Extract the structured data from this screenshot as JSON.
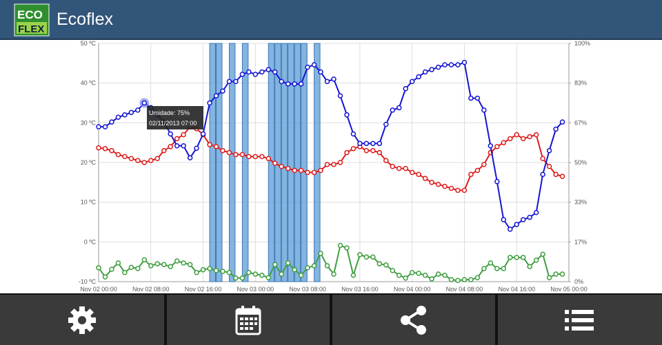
{
  "header": {
    "title": "Ecoflex",
    "logo_top": "ECO",
    "logo_bottom": "FLEX"
  },
  "chart_data": {
    "type": "line",
    "x": [
      "Nov 02 00:00",
      "Nov 02 01:00",
      "Nov 02 02:00",
      "Nov 02 03:00",
      "Nov 02 04:00",
      "Nov 02 05:00",
      "Nov 02 06:00",
      "Nov 02 07:00",
      "Nov 02 08:00",
      "Nov 02 09:00",
      "Nov 02 10:00",
      "Nov 02 11:00",
      "Nov 02 12:00",
      "Nov 02 13:00",
      "Nov 02 14:00",
      "Nov 02 15:00",
      "Nov 02 16:00",
      "Nov 02 17:00",
      "Nov 02 18:00",
      "Nov 02 19:00",
      "Nov 02 20:00",
      "Nov 02 21:00",
      "Nov 02 22:00",
      "Nov 02 23:00",
      "Nov 03 00:00",
      "Nov 03 01:00",
      "Nov 03 02:00",
      "Nov 03 03:00",
      "Nov 03 04:00",
      "Nov 03 05:00",
      "Nov 03 06:00",
      "Nov 03 07:00",
      "Nov 03 08:00",
      "Nov 03 09:00",
      "Nov 03 10:00",
      "Nov 03 11:00",
      "Nov 03 12:00",
      "Nov 03 13:00",
      "Nov 03 14:00",
      "Nov 03 15:00",
      "Nov 03 16:00",
      "Nov 03 17:00",
      "Nov 03 18:00",
      "Nov 03 19:00",
      "Nov 03 20:00",
      "Nov 03 21:00",
      "Nov 03 22:00",
      "Nov 03 23:00",
      "Nov 04 00:00",
      "Nov 04 01:00",
      "Nov 04 02:00",
      "Nov 04 03:00",
      "Nov 04 04:00",
      "Nov 04 05:00",
      "Nov 04 06:00",
      "Nov 04 07:00",
      "Nov 04 08:00",
      "Nov 04 09:00",
      "Nov 04 10:00",
      "Nov 04 11:00",
      "Nov 04 12:00",
      "Nov 04 13:00",
      "Nov 04 14:00",
      "Nov 04 15:00",
      "Nov 04 16:00",
      "Nov 04 17:00",
      "Nov 04 18:00",
      "Nov 04 19:00",
      "Nov 04 20:00",
      "Nov 04 21:00",
      "Nov 04 22:00",
      "Nov 04 23:00"
    ],
    "xlim": [
      "Nov 02 00:00",
      "Nov 05 00:00"
    ],
    "xticks": [
      "Nov 02 00:00",
      "Nov 02 08:00",
      "Nov 02 16:00",
      "Nov 03 00:00",
      "Nov 03 08:00",
      "Nov 03 16:00",
      "Nov 04 00:00",
      "Nov 04 08:00",
      "Nov 04 16:00",
      "Nov 05 00:00"
    ],
    "ylim": [
      -10,
      50
    ],
    "yticks": [
      {
        "value": -10,
        "label": "-10 ºC"
      },
      {
        "value": 0,
        "label": "0 ºC"
      },
      {
        "value": 10,
        "label": "10 ºC"
      },
      {
        "value": 20,
        "label": "20 ºC"
      },
      {
        "value": 30,
        "label": "30 ºC"
      },
      {
        "value": 40,
        "label": "40 ºC"
      },
      {
        "value": 50,
        "label": "50 ºC"
      }
    ],
    "y2lim": [
      0,
      100
    ],
    "y2ticks": [
      {
        "value": 0,
        "label": "0%"
      },
      {
        "value": 16.67,
        "label": "17%"
      },
      {
        "value": 33.33,
        "label": "33%"
      },
      {
        "value": 50,
        "label": "50%"
      },
      {
        "value": 66.67,
        "label": "67%"
      },
      {
        "value": 83.33,
        "label": "83%"
      },
      {
        "value": 100,
        "label": "100%"
      }
    ],
    "grid": true,
    "highlights": {
      "color": "#5b9bd5",
      "x": [
        "Nov 02 17:00",
        "Nov 02 18:00",
        "Nov 02 20:00",
        "Nov 02 22:00",
        "Nov 03 02:00",
        "Nov 03 03:00",
        "Nov 03 04:00",
        "Nov 03 05:00",
        "Nov 03 06:00",
        "Nov 03 07:00",
        "Nov 03 09:00"
      ]
    },
    "series": [
      {
        "color": "#e01b1b",
        "axis": "y",
        "values": [
          23.7,
          23.5,
          23,
          22,
          21.5,
          21,
          20.5,
          20,
          20.5,
          21,
          23,
          24,
          26,
          27,
          29,
          28.5,
          27,
          24.5,
          24,
          23,
          22.5,
          22,
          22,
          21.5,
          21.5,
          21.5,
          21,
          19.8,
          19,
          18.5,
          18,
          18,
          17.5,
          17.5,
          18,
          19.5,
          19.5,
          20,
          22.5,
          23.5,
          24,
          23,
          23,
          22.5,
          20.5,
          19,
          18.5,
          18.5,
          17.5,
          17,
          16,
          15,
          14.5,
          14,
          13.5,
          13,
          13,
          17,
          18,
          19.5,
          22.5,
          24,
          25,
          26,
          27,
          26,
          26.5,
          27,
          21,
          19,
          17,
          16.5
        ]
      },
      {
        "color": "#1414d2",
        "axis": "y2",
        "values": [
          65,
          65,
          67,
          69,
          70,
          71,
          72,
          75,
          73,
          70,
          67,
          62,
          57,
          57,
          52,
          56,
          62,
          75,
          78,
          80,
          84,
          84,
          87,
          88,
          87,
          88,
          89,
          88,
          84,
          83,
          83,
          83,
          90,
          91,
          88,
          84,
          85,
          78,
          70,
          62,
          58,
          58,
          58,
          58,
          66,
          72,
          73,
          81,
          84,
          86,
          88,
          89,
          90,
          91,
          91,
          91,
          92,
          77,
          77,
          72,
          57,
          42,
          26,
          22,
          24,
          26,
          27,
          29,
          45,
          55,
          64,
          67
        ]
      },
      {
        "color": "#3e9e3e",
        "axis": "y",
        "values": [
          -6.5,
          -8.8,
          -6.9,
          -5.3,
          -7.7,
          -6.4,
          -6.7,
          -4.5,
          -6,
          -5.5,
          -5.7,
          -6.2,
          -4.8,
          -5.3,
          -5.7,
          -7.7,
          -7,
          -6.7,
          -7.2,
          -7.4,
          -7.7,
          -9.1,
          -9.1,
          -7.7,
          -8.1,
          -8.4,
          -9,
          -5.7,
          -8.1,
          -5.3,
          -7,
          -8.4,
          -6.5,
          -6,
          -2.9,
          -6,
          -8.1,
          -0.9,
          -1.5,
          -8.4,
          -3.2,
          -3.8,
          -3.8,
          -5.5,
          -5.8,
          -7.2,
          -8.4,
          -9.1,
          -7.7,
          -7.9,
          -8.4,
          -9.3,
          -8.1,
          -8.4,
          -9.5,
          -9.7,
          -9.5,
          -9.5,
          -9,
          -6.7,
          -5.3,
          -6.7,
          -6.7,
          -3.9,
          -3.9,
          -3.9,
          -6.2,
          -4.6,
          -3.1,
          -9,
          -8.1,
          -8.1
        ]
      }
    ],
    "tooltip": {
      "lines": [
        "Umidade: 75%",
        "02/11/2013 07:00"
      ]
    }
  }
}
